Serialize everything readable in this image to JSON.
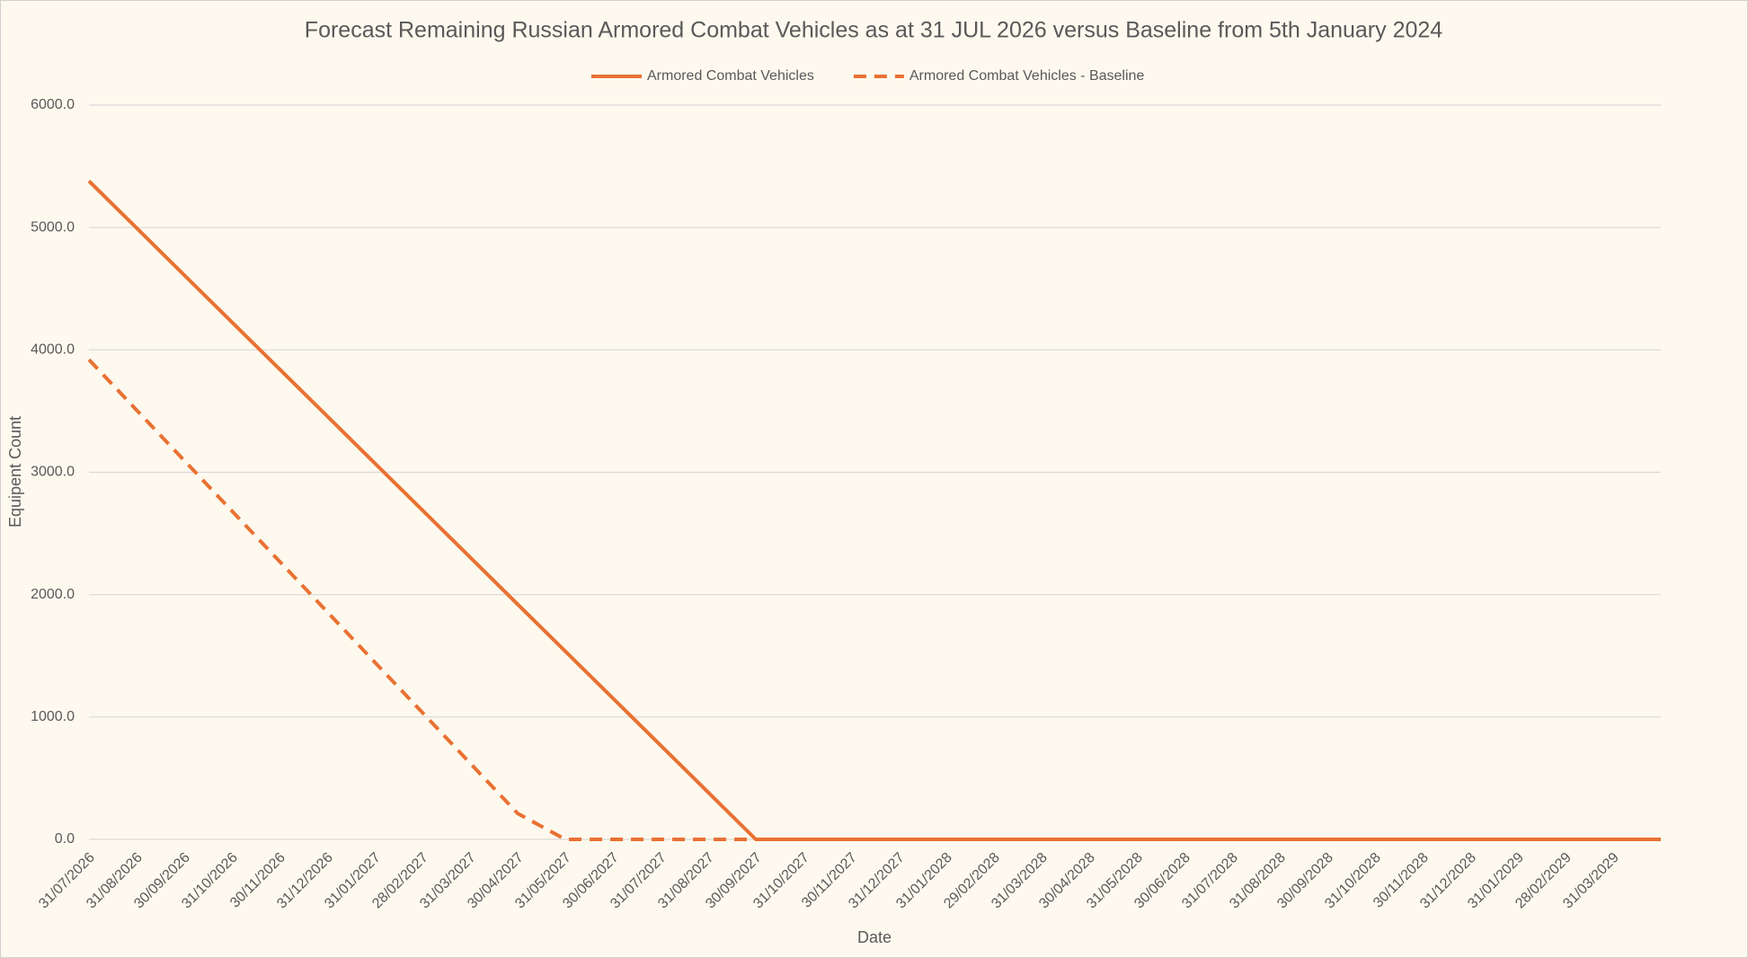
{
  "chart_data": {
    "type": "line",
    "title": "Forecast Remaining Russian Armored Combat Vehicles as at 31 JUL 2026 versus Baseline from 5th January 2024",
    "x_label": "Date",
    "y_label": "Equipent Count",
    "categories": [
      "31/07/2026",
      "31/08/2026",
      "30/09/2026",
      "31/10/2026",
      "30/11/2026",
      "31/12/2026",
      "31/01/2027",
      "28/02/2027",
      "31/03/2027",
      "30/04/2027",
      "31/05/2027",
      "30/06/2027",
      "31/07/2027",
      "31/08/2027",
      "30/09/2027",
      "31/10/2027",
      "30/11/2027",
      "31/12/2027",
      "31/01/2028",
      "29/02/2028",
      "31/03/2028",
      "30/04/2028",
      "31/05/2028",
      "30/06/2028",
      "31/07/2028",
      "31/08/2028",
      "30/09/2028",
      "31/10/2028",
      "30/11/2028",
      "31/12/2028",
      "31/01/2029",
      "28/02/2029",
      "31/03/2029",
      null
    ],
    "series": [
      {
        "name": "Armored Combat Vehicles",
        "color": "#e97132",
        "dash": false,
        "values": [
          5380,
          4996,
          4611,
          4227,
          3843,
          3459,
          3074,
          2690,
          2306,
          1921,
          1537,
          1153,
          769,
          384,
          0,
          0,
          0,
          0,
          0,
          0,
          0,
          0,
          0,
          0,
          0,
          0,
          0,
          0,
          0,
          0,
          0,
          0,
          0,
          0
        ]
      },
      {
        "name": "Armored Combat Vehicles - Baseline",
        "color": "#e97132",
        "dash": true,
        "values": [
          3920,
          3508,
          3096,
          2684,
          2272,
          1860,
          1448,
          1036,
          624,
          212,
          0,
          0,
          0,
          0,
          0,
          null,
          null,
          null,
          null,
          null,
          null,
          null,
          null,
          null,
          null,
          null,
          null,
          null,
          null,
          null,
          null,
          null,
          null,
          null
        ]
      }
    ],
    "ylim": [
      0,
      6000
    ],
    "yticks": [
      {
        "value": 0,
        "label": "0.0"
      },
      {
        "value": 1000,
        "label": "1000.0"
      },
      {
        "value": 2000,
        "label": "2000.0"
      },
      {
        "value": 3000,
        "label": "3000.0"
      },
      {
        "value": 4000,
        "label": "4000.0"
      },
      {
        "value": 5000,
        "label": "5000.0"
      },
      {
        "value": 6000,
        "label": "6000.0"
      }
    ],
    "grid": true,
    "legend": "top"
  }
}
